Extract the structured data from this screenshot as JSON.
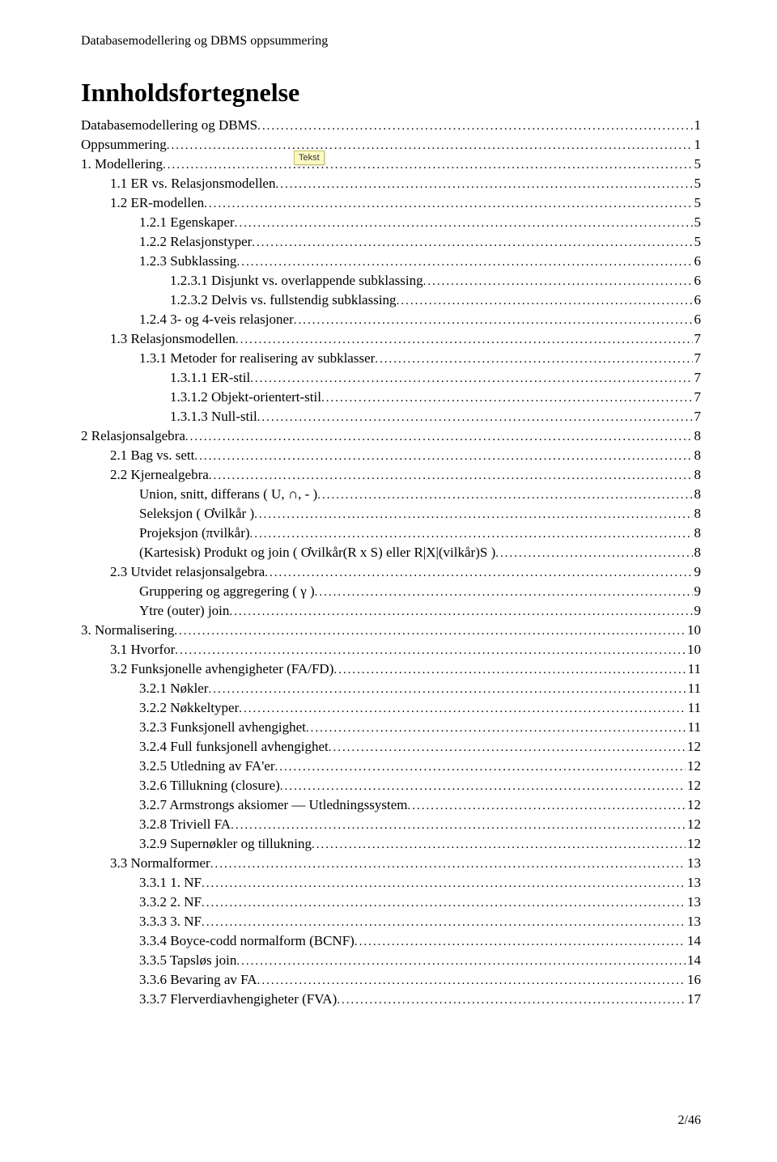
{
  "header": "Databasemodellering og DBMS oppsummering",
  "title": "Innholdsfortegnelse",
  "note_text": "Tekst",
  "footer": "2/46",
  "toc": [
    {
      "label": "Databasemodellering og DBMS",
      "page": "1",
      "indent": 0
    },
    {
      "label": "Oppsummering",
      "page": "1",
      "indent": 0
    },
    {
      "label": "1. Modellering",
      "page": "5",
      "indent": 0
    },
    {
      "label": "1.1 ER vs. Relasjonsmodellen",
      "page": "5",
      "indent": 1
    },
    {
      "label": "1.2 ER-modellen",
      "page": "5",
      "indent": 1
    },
    {
      "label": "1.2.1 Egenskaper",
      "page": "5",
      "indent": 2
    },
    {
      "label": "1.2.2 Relasjonstyper",
      "page": "5",
      "indent": 2
    },
    {
      "label": "1.2.3 Subklassing",
      "page": "6",
      "indent": 2
    },
    {
      "label": "1.2.3.1 Disjunkt vs. overlappende subklassing",
      "page": "6",
      "indent": 3
    },
    {
      "label": "1.2.3.2 Delvis vs. fullstendig subklassing",
      "page": "6",
      "indent": 3
    },
    {
      "label": "1.2.4 3- og 4-veis relasjoner",
      "page": "6",
      "indent": 2
    },
    {
      "label": "1.3 Relasjonsmodellen",
      "page": "7",
      "indent": 1
    },
    {
      "label": "1.3.1 Metoder for realisering av subklasser",
      "page": "7",
      "indent": 2
    },
    {
      "label": "1.3.1.1 ER-stil",
      "page": "7",
      "indent": 3
    },
    {
      "label": "1.3.1.2 Objekt-orientert-stil",
      "page": "7",
      "indent": 3
    },
    {
      "label": "1.3.1.3 Null-stil",
      "page": "7",
      "indent": 3
    },
    {
      "label": "2 Relasjonsalgebra",
      "page": "8",
      "indent": 0
    },
    {
      "label": "2.1 Bag vs. sett",
      "page": "8",
      "indent": 1
    },
    {
      "label": "2.2 Kjernealgebra",
      "page": "8",
      "indent": 1
    },
    {
      "label": "Union, snitt, differans ( U, ∩, - )",
      "page": "8",
      "indent": 2
    },
    {
      "label": "Seleksjon ( Ơvilkår )",
      "page": "8",
      "indent": 2
    },
    {
      "label": "Projeksjon (πvilkår)",
      "page": "8",
      "indent": 2
    },
    {
      "label": "(Kartesisk) Produkt og join ( Ơvilkår(R x S) eller R|X|(vilkår)S )",
      "page": "8",
      "indent": 2
    },
    {
      "label": "2.3 Utvidet relasjonsalgebra",
      "page": "9",
      "indent": 1
    },
    {
      "label": "Gruppering og aggregering ( γ )",
      "page": "9",
      "indent": 2
    },
    {
      "label": "Ytre (outer) join",
      "page": "9",
      "indent": 2
    },
    {
      "label": "3. Normalisering",
      "page": "10",
      "indent": 0
    },
    {
      "label": "3.1 Hvorfor",
      "page": "10",
      "indent": 1
    },
    {
      "label": "3.2 Funksjonelle avhengigheter (FA/FD)",
      "page": "11",
      "indent": 1
    },
    {
      "label": "3.2.1 Nøkler",
      "page": "11",
      "indent": 2
    },
    {
      "label": "3.2.2 Nøkkeltyper",
      "page": "11",
      "indent": 2
    },
    {
      "label": "3.2.3 Funksjonell avhengighet",
      "page": "11",
      "indent": 2
    },
    {
      "label": "3.2.4 Full funksjonell avhengighet",
      "page": "12",
      "indent": 2
    },
    {
      "label": "3.2.5 Utledning av FA'er",
      "page": "12",
      "indent": 2
    },
    {
      "label": "3.2.6 Tillukning (closure)",
      "page": "12",
      "indent": 2
    },
    {
      "label": "3.2.7 Armstrongs aksiomer — Utledningssystem",
      "page": "12",
      "indent": 2
    },
    {
      "label": "3.2.8 Triviell FA",
      "page": "12",
      "indent": 2
    },
    {
      "label": "3.2.9 Supernøkler og tillukning",
      "page": "12",
      "indent": 2
    },
    {
      "label": "3.3 Normalformer",
      "page": "13",
      "indent": 1
    },
    {
      "label": "3.3.1  1. NF",
      "page": "13",
      "indent": 2
    },
    {
      "label": "3.3.2  2. NF",
      "page": "13",
      "indent": 2
    },
    {
      "label": "3.3.3  3. NF",
      "page": "13",
      "indent": 2
    },
    {
      "label": "3.3.4 Boyce-codd normalform (BCNF)",
      "page": "14",
      "indent": 2
    },
    {
      "label": "3.3.5 Tapsløs join",
      "page": "14",
      "indent": 2
    },
    {
      "label": "3.3.6 Bevaring av FA",
      "page": "16",
      "indent": 2
    },
    {
      "label": "3.3.7 Flerverdiavhengigheter (FVA)",
      "page": "17",
      "indent": 2
    }
  ]
}
